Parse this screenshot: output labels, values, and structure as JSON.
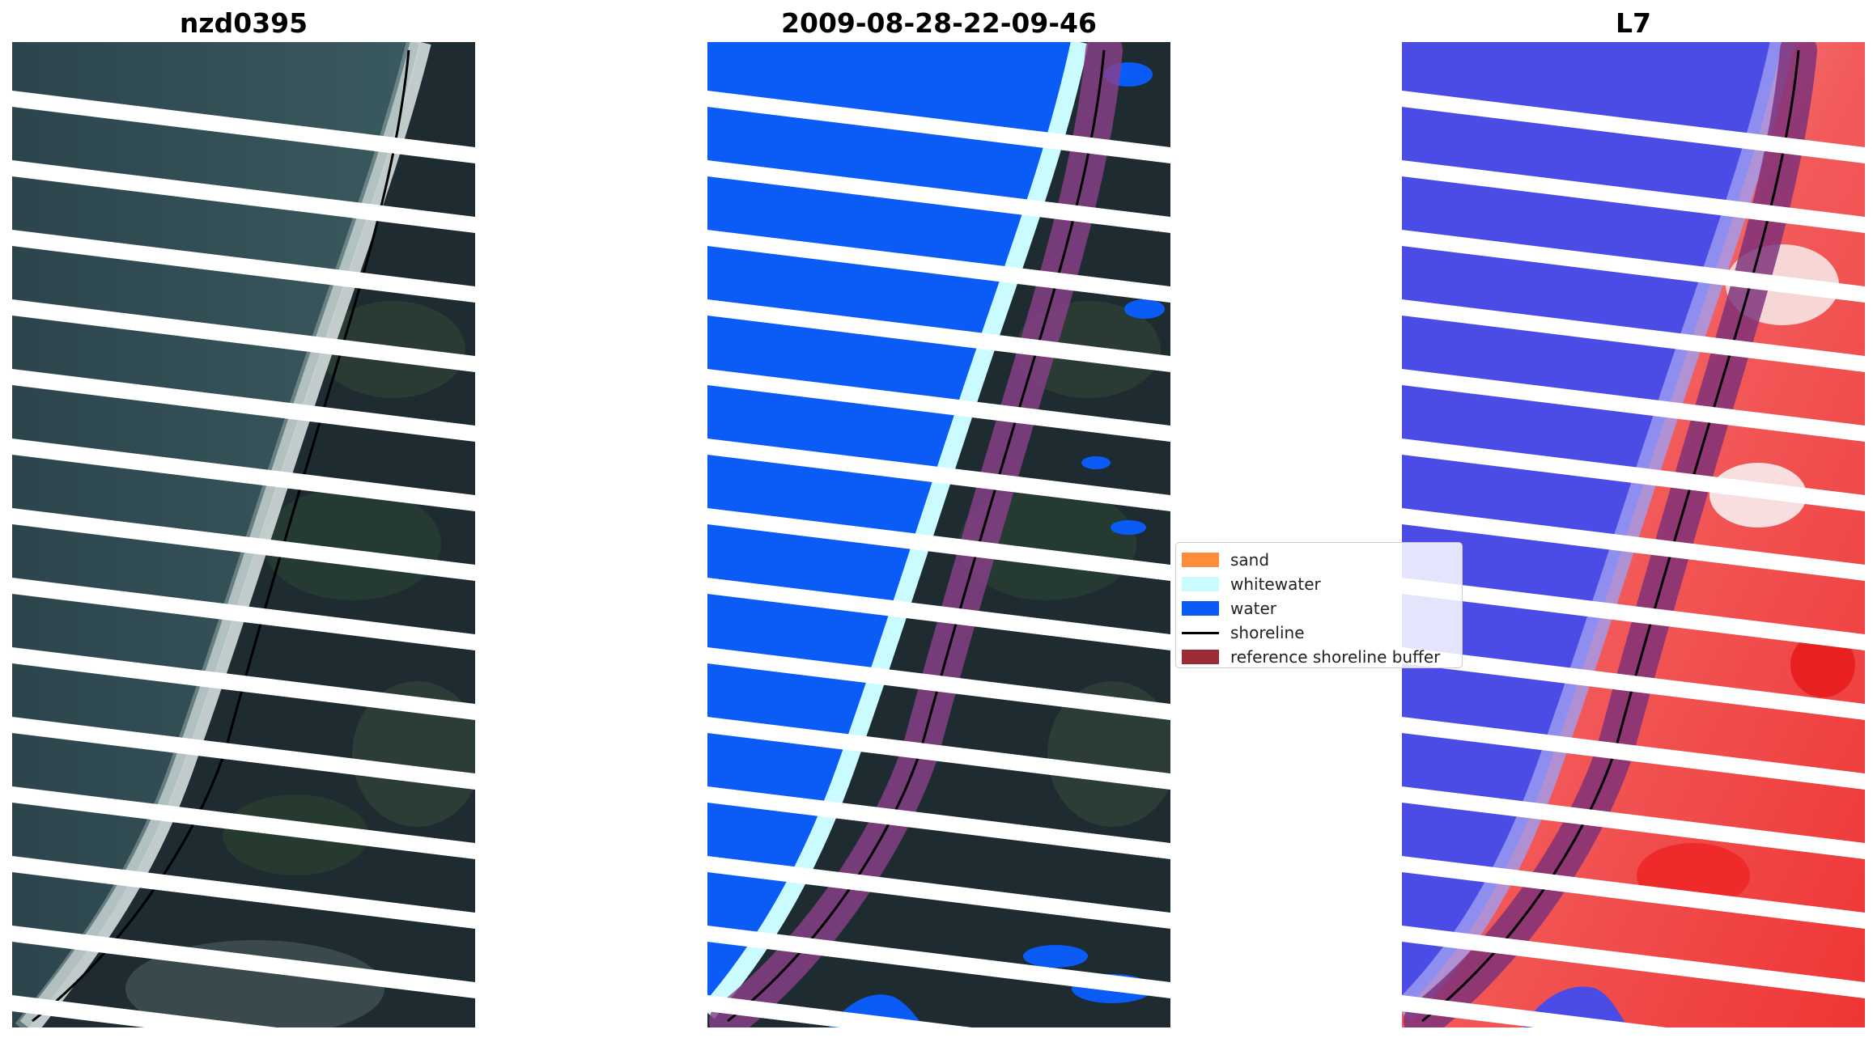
{
  "panels": [
    {
      "title": "nzd0395"
    },
    {
      "title": "2009-08-28-22-09-46"
    },
    {
      "title": "L7"
    }
  ],
  "legend": {
    "items": [
      {
        "label": "sand",
        "kind": "patch",
        "color": "#ff8c3a"
      },
      {
        "label": "whitewater",
        "kind": "patch",
        "color": "#c9fbff"
      },
      {
        "label": "water",
        "kind": "patch",
        "color": "#0b5cf7"
      },
      {
        "label": "shoreline",
        "kind": "line",
        "color": "#000000"
      },
      {
        "label": "reference shoreline buffer",
        "kind": "patch",
        "color": "#9b2b35"
      }
    ]
  },
  "colors": {
    "land_dark": "#1f2e35",
    "ocean_rgb": "#314f56",
    "surf": "#e9efee",
    "water_class": "#0b5cf7",
    "whitewater_class": "#c9fbff",
    "buffer": "#8a3f8a",
    "mndwi_water": "#4b4be6",
    "mndwi_land": "#f03a3a"
  }
}
